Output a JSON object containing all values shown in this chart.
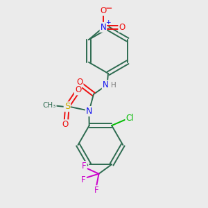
{
  "bg_color": "#ebebeb",
  "atom_colors": {
    "C": "#2d6b50",
    "N": "#1010ee",
    "O": "#ee1010",
    "S": "#ccaa00",
    "F": "#cc00cc",
    "Cl": "#00bb00",
    "H": "#777777"
  },
  "bond_color": "#2d6b50",
  "figsize": [
    3.0,
    3.0
  ],
  "dpi": 100,
  "xlim": [
    0,
    10
  ],
  "ylim": [
    0,
    10
  ]
}
